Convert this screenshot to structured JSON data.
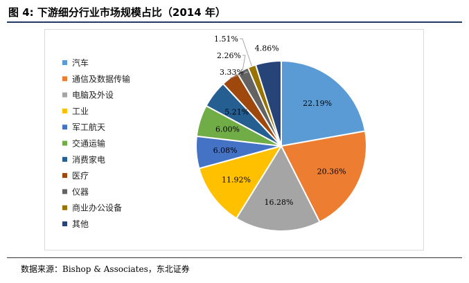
{
  "figure": {
    "title": "图 4:  下游细分行业市场规模占比（2014 年）",
    "source": "数据来源：Bishop & Associates，东北证券"
  },
  "chart_data": {
    "type": "pie",
    "title": "",
    "categories": [
      "汽车",
      "通信及数据传输",
      "电脑及外设",
      "工业",
      "军工航天",
      "交通运输",
      "消费家电",
      "医疗",
      "仪器",
      "商业办公设备",
      "其他"
    ],
    "values": [
      22.19,
      20.36,
      16.28,
      11.92,
      6.08,
      6.0,
      5.21,
      3.33,
      2.26,
      1.51,
      4.86
    ],
    "data_labels": [
      "22.19%",
      "20.36%",
      "16.28%",
      "11.92%",
      "6.08%",
      "6.00%",
      "5.21%",
      "3.33%",
      "2.26%",
      "1.51%",
      "4.86%"
    ],
    "colors": [
      "#5b9bd5",
      "#ed7d31",
      "#a5a5a5",
      "#ffc000",
      "#4472c4",
      "#70ad47",
      "#255e91",
      "#9e480e",
      "#636363",
      "#997300",
      "#264478"
    ],
    "start": "12 o'clock",
    "direction": "clockwise",
    "legend_position": "left"
  }
}
